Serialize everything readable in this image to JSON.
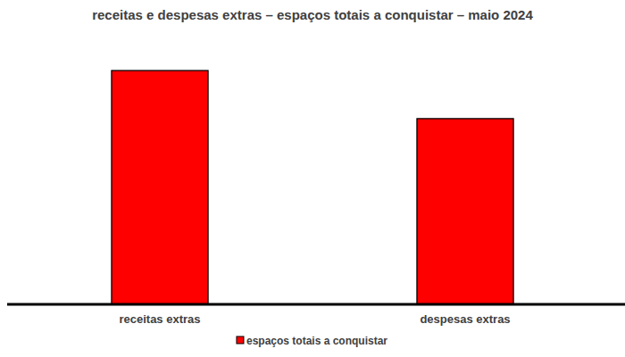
{
  "chart_data": {
    "type": "bar",
    "title": "receitas e despesas extras – espaços totais a conquistar – maio 2024",
    "categories": [
      "receitas extras",
      "despesas extras"
    ],
    "series": [
      {
        "name": "espaços totais a conquistar",
        "color": "#ff0000",
        "values": [
          88.5,
          70.3
        ]
      }
    ],
    "ylim": [
      0,
      100
    ],
    "tick_labels": "x",
    "legend": "bottom",
    "grid": false
  }
}
